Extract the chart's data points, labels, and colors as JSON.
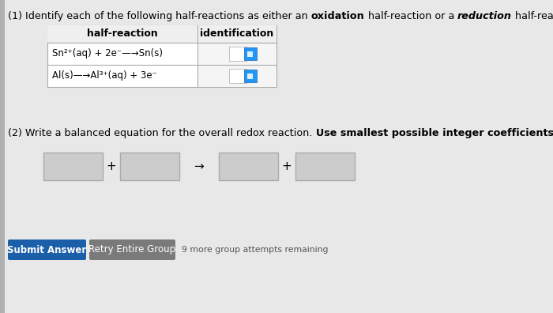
{
  "background_color": "#e8e8e8",
  "title1_seg1": "(1) Identify each of the following half-reactions as either an ",
  "title1_seg2": "oxidation",
  "title1_seg3": " half-reaction or a ",
  "title1_seg4": "reduction",
  "title1_seg5": " half-reaction.",
  "table_col1_header": "half-reaction",
  "table_col2_header": "identification",
  "table_row1": "Sn²⁺(aq) + 2e⁻—→Sn(s)",
  "table_row2": "Al(s)—→Al³⁺(aq) + 3e⁻",
  "part2_seg1": "(2) Write a balanced equation for the overall redox reaction. ",
  "part2_seg2": "Use smallest possible integer coefficients.",
  "submit_label": "Submit Answer",
  "retry_label": "Retry Entire Group",
  "attempts_label": "9 more group attempts remaining",
  "submit_bg": "#1a5fa8",
  "retry_bg": "#7a7a7a",
  "bg_light": "#dcdcdc",
  "table_border_color": "#aaaaaa",
  "input_box_fill": "#cccccc",
  "input_box_edge": "#aaaaaa",
  "dropdown_fill": "#2196F3",
  "dropdown_edge": "#1565C0",
  "white": "#ffffff",
  "font_size_main": 9.2,
  "font_size_table": 9.0,
  "font_size_btn": 8.5
}
